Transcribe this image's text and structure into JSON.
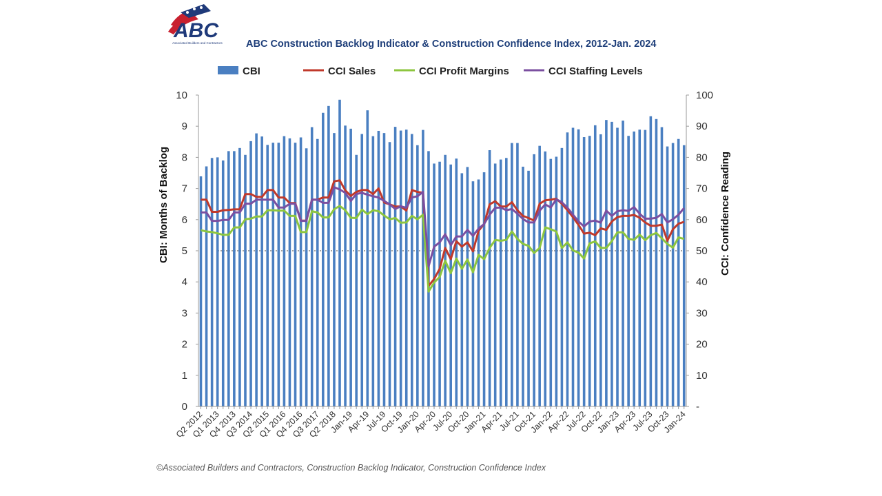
{
  "logo": {
    "text": "ABC",
    "subtext": "Associated Builders and Contractors"
  },
  "footer": "©Associated Builders and Contractors, Construction Backlog Indicator, Construction Confidence Index",
  "chart_data": {
    "type": "bar+line",
    "title": "ABC Construction Backlog Indicator & Construction Confidence Index, 2012-Jan. 2024",
    "ylabel": "CBI: Months of Backlog",
    "y2label": "CCI: Confidence Reading",
    "ylim": [
      0,
      10
    ],
    "y2lim": [
      0,
      100
    ],
    "yticks": [
      "0",
      "1",
      "2",
      "3",
      "4",
      "5",
      "6",
      "7",
      "8",
      "9",
      "10"
    ],
    "y2ticks": [
      "-",
      "10",
      "20",
      "30",
      "40",
      "50",
      "60",
      "70",
      "80",
      "90",
      "100"
    ],
    "y2_reference_line": 50,
    "legend_position": "top",
    "x_tick_every": 3,
    "x_tick_labels": [
      "Q2 2012",
      "Q1 2013",
      "Q4 2013",
      "Q3 2014",
      "Q2 2015",
      "Q1 2016",
      "Q4 2016",
      "Q3 2017",
      "Q2 2018",
      "Jan-19",
      "Apr-19",
      "Jul-19",
      "Oct-19",
      "Jan-20",
      "Apr-20",
      "Jul-20",
      "Oct-20",
      "Jan-21",
      "Apr-21",
      "Jul-21",
      "Oct-21",
      "Jan-22",
      "Apr-22",
      "Jul-22",
      "Oct-22",
      "Jan-23",
      "Apr-23",
      "Jul-23",
      "Oct-23",
      "Jan-24"
    ],
    "series": [
      {
        "name": "CBI",
        "kind": "bar",
        "axis": "left",
        "color": "#4a7fc1",
        "values": [
          7.39,
          7.71,
          7.98,
          8.0,
          7.9,
          8.2,
          8.2,
          8.3,
          8.08,
          8.52,
          8.77,
          8.67,
          8.4,
          8.47,
          8.47,
          8.68,
          8.61,
          8.47,
          8.64,
          8.29,
          8.97,
          8.59,
          9.43,
          9.65,
          8.78,
          9.85,
          9.02,
          8.92,
          8.08,
          8.75,
          9.51,
          8.68,
          8.85,
          8.78,
          8.49,
          8.98,
          8.86,
          8.89,
          8.75,
          8.39,
          8.88,
          8.2,
          7.8,
          7.86,
          8.08,
          7.77,
          7.96,
          7.49,
          7.69,
          7.23,
          7.29,
          7.52,
          8.23,
          7.8,
          7.93,
          7.98,
          8.46,
          8.46,
          7.7,
          7.57,
          8.1,
          8.37,
          8.19,
          7.95,
          8.02,
          8.3,
          8.8,
          8.95,
          8.9,
          8.65,
          8.69,
          9.03,
          8.74,
          9.2,
          9.14,
          8.95,
          9.18,
          8.69,
          8.83,
          8.89,
          8.88,
          9.32,
          9.23,
          8.97,
          8.35,
          8.46,
          8.59,
          8.39
        ]
      },
      {
        "name": "CCI Sales",
        "kind": "line",
        "axis": "right",
        "color": "#c0392b",
        "values": [
          66.4,
          66.4,
          62.5,
          62.5,
          63.0,
          63.1,
          63.3,
          63.3,
          68.2,
          68.2,
          67.3,
          67.3,
          69.5,
          69.5,
          67.1,
          67.1,
          65.3,
          65.3,
          59.7,
          59.7,
          66.4,
          66.4,
          67.1,
          67.1,
          72.3,
          72.6,
          69.4,
          67.6,
          68.9,
          69.5,
          69.5,
          68.2,
          70.0,
          65.5,
          64.9,
          64.2,
          64.2,
          62.9,
          69.5,
          68.9,
          68.6,
          38.7,
          40.9,
          44.2,
          50.9,
          47.3,
          53.1,
          51.3,
          52.7,
          49.8,
          56.4,
          58.6,
          64.9,
          65.9,
          64.2,
          64.2,
          65.6,
          63.0,
          61.2,
          60.5,
          59.7,
          65.1,
          66.2,
          66.4,
          66.7,
          65.1,
          63.0,
          60.8,
          58.3,
          55.5,
          55.8,
          55.0,
          57.2,
          56.7,
          59.4,
          60.8,
          61.2,
          61.2,
          61.5,
          60.6,
          59.1,
          58.0,
          58.0,
          58.4,
          53.2,
          56.9,
          58.7,
          59.3
        ]
      },
      {
        "name": "CCI Profit Margins",
        "kind": "line",
        "axis": "right",
        "color": "#8dc63f",
        "values": [
          56.6,
          56.2,
          56.0,
          55.6,
          55.1,
          55.1,
          57.5,
          57.5,
          60.1,
          60.3,
          61.0,
          61.0,
          63.0,
          63.0,
          62.9,
          62.9,
          61.2,
          61.2,
          56.0,
          56.0,
          62.7,
          62.3,
          60.7,
          60.7,
          63.3,
          64.4,
          63.0,
          60.6,
          60.5,
          63.2,
          61.8,
          63.0,
          62.7,
          61.3,
          60.1,
          60.5,
          59.0,
          59.1,
          61.2,
          60.1,
          61.6,
          36.9,
          39.8,
          41.6,
          46.8,
          42.8,
          47.5,
          44.2,
          47.2,
          43.1,
          48.7,
          47.3,
          50.9,
          53.5,
          53.2,
          53.5,
          56.2,
          53.8,
          52.2,
          51.6,
          49.3,
          50.9,
          57.5,
          56.9,
          56.2,
          50.9,
          52.7,
          50.1,
          49.4,
          47.5,
          52.4,
          53.0,
          50.9,
          50.9,
          53.1,
          55.9,
          55.9,
          53.8,
          53.5,
          55.2,
          53.4,
          55.0,
          55.7,
          54.0,
          52.2,
          51.0,
          54.3,
          53.8
        ]
      },
      {
        "name": "CCI Staffing Levels",
        "kind": "line",
        "axis": "right",
        "color": "#7b4fa0",
        "values": [
          62.3,
          62.3,
          59.6,
          59.6,
          59.9,
          59.9,
          62.3,
          62.3,
          65.1,
          65.1,
          66.4,
          66.4,
          66.4,
          66.4,
          63.9,
          63.9,
          65.1,
          65.1,
          59.6,
          59.6,
          66.4,
          66.4,
          65.4,
          65.4,
          70.4,
          69.7,
          68.6,
          66.0,
          68.2,
          68.6,
          68.0,
          67.5,
          67.1,
          66.0,
          64.9,
          63.4,
          64.3,
          63.8,
          67.1,
          67.5,
          68.9,
          45.0,
          51.3,
          52.7,
          55.3,
          51.8,
          54.6,
          54.6,
          56.7,
          54.8,
          57.1,
          58.6,
          61.6,
          63.8,
          63.9,
          63.0,
          63.4,
          61.9,
          60.2,
          59.1,
          59.1,
          62.9,
          64.9,
          63.9,
          66.5,
          65.6,
          63.8,
          61.6,
          59.4,
          57.8,
          59.4,
          59.7,
          59.0,
          62.9,
          61.2,
          62.7,
          63.0,
          62.8,
          64.0,
          61.9,
          60.3,
          60.3,
          60.6,
          61.8,
          59.1,
          60.1,
          61.6,
          63.7
        ]
      }
    ]
  }
}
